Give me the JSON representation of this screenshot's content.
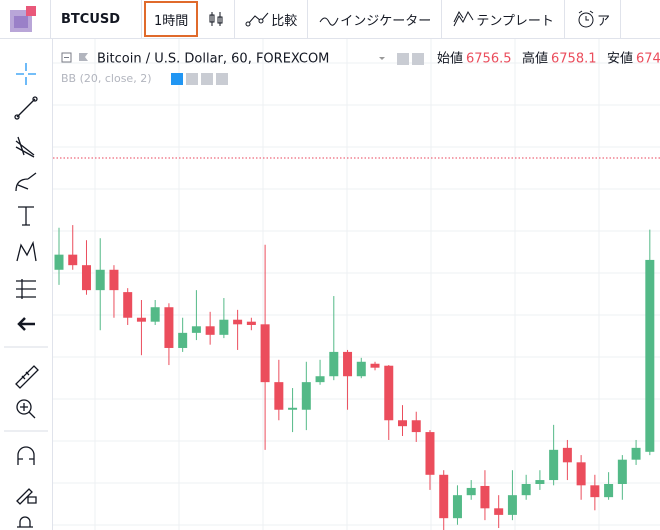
{
  "toolbar": {
    "symbol": "BTCUSD",
    "interval": "1時間",
    "compare": "比較",
    "indicators": "インジケーター",
    "templates": "テンプレート",
    "alerts": "ア"
  },
  "legend": {
    "title": "Bitcoin / U.S. Dollar, 60, FOREXCOM",
    "open_label": "始値",
    "open": 6756.5,
    "high_label": "高値",
    "high": 6758.1,
    "low_label": "安値",
    "low": "674",
    "indicator": "BB (20, close, 2)"
  },
  "chart_data": {
    "type": "candlestick",
    "up_color": "#53b987",
    "down_color": "#eb4d5c",
    "ylim": [
      6700,
      6770
    ],
    "open": [
      6739.6,
      6741.9,
      6740.3,
      6736.5,
      6739.6,
      6736.2,
      6732.3,
      6731.7,
      6733.9,
      6727.7,
      6730.0,
      6731.0,
      6729.7,
      6732.0,
      6731.7,
      6731.3,
      6722.5,
      6718.3,
      6718.3,
      6722.5,
      6723.4,
      6727.1,
      6723.4,
      6725.3,
      6725.0,
      6716.7,
      6716.7,
      6714.9,
      6708.4,
      6701.8,
      6705.3,
      6706.7,
      6703.3,
      6702.3,
      6705.3,
      6707.0,
      6707.6,
      6712.5,
      6710.3,
      6706.8,
      6705.0,
      6707.0,
      6710.7,
      6711.9
    ],
    "high": [
      6746.0,
      6746.4,
      6744.1,
      6744.4,
      6740.3,
      6736.8,
      6735.0,
      6735.0,
      6734.5,
      6732.3,
      6736.5,
      6733.2,
      6735.3,
      6733.5,
      6732.3,
      6743.4,
      6725.9,
      6721.6,
      6725.6,
      6725.9,
      6735.6,
      6727.4,
      6726.2,
      6725.6,
      6725.1,
      6719.0,
      6718.0,
      6715.2,
      6709.1,
      6706.8,
      6707.6,
      6709.1,
      6705.3,
      6709.1,
      6708.4,
      6709.1,
      6716.0,
      6713.7,
      6711.4,
      6708.4,
      6708.8,
      6711.4,
      6713.7,
      6745.7
    ],
    "low": [
      6737.3,
      6739.6,
      6735.8,
      6730.4,
      6732.3,
      6731.2,
      6726.6,
      6731.2,
      6725.1,
      6727.1,
      6728.9,
      6728.2,
      6729.2,
      6727.4,
      6730.4,
      6712.2,
      6716.7,
      6714.9,
      6715.2,
      6722.1,
      6722.8,
      6718.3,
      6723.1,
      6724.3,
      6713.7,
      6714.3,
      6713.4,
      6706.1,
      6700.0,
      6700.8,
      6704.6,
      6701.5,
      6700.3,
      6701.5,
      6704.6,
      6706.1,
      6706.8,
      6707.6,
      6704.6,
      6703.0,
      6704.6,
      6704.6,
      6709.9,
      6711.4
    ],
    "close": [
      6741.9,
      6740.3,
      6736.5,
      6739.6,
      6736.5,
      6732.3,
      6731.7,
      6733.9,
      6727.7,
      6730.0,
      6731.0,
      6729.7,
      6732.0,
      6731.3,
      6731.2,
      6722.5,
      6718.3,
      6718.6,
      6722.5,
      6723.4,
      6727.1,
      6723.4,
      6725.6,
      6724.7,
      6716.7,
      6715.8,
      6714.9,
      6708.4,
      6701.8,
      6705.3,
      6706.4,
      6703.3,
      6702.3,
      6705.3,
      6707.0,
      6707.6,
      6712.2,
      6710.3,
      6706.8,
      6705.0,
      6707.0,
      6710.7,
      6712.5,
      6741.1
    ]
  }
}
